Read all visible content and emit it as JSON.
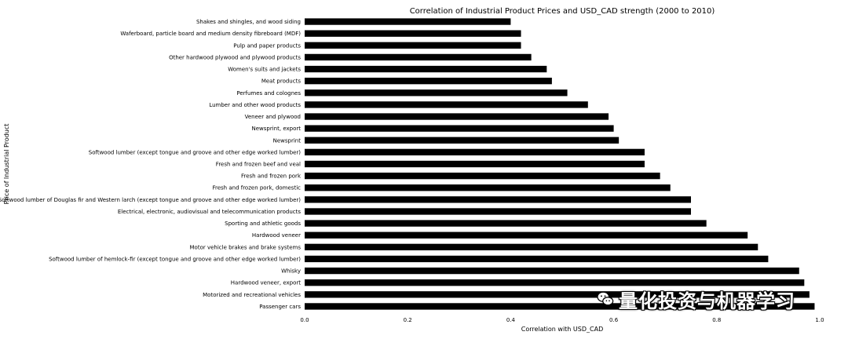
{
  "chart_data": {
    "type": "bar",
    "orientation": "horizontal",
    "title": "Correlation of Industrial Product Prices and USD_CAD strength (2000 to 2010)",
    "xlabel": "Correlation with USD_CAD",
    "ylabel": "Price of Industrial Product",
    "xlim": [
      0.0,
      1.0
    ],
    "xticks": [
      "0.0",
      "0.2",
      "0.4",
      "0.6",
      "0.8",
      "1.0"
    ],
    "grid": false,
    "categories": [
      "Shakes and shingles, and wood siding",
      "Waferboard, particle board and medium density fibreboard (MDF)",
      "Pulp and paper products",
      "Other hardwood plywood and plywood products",
      "Women's suits and jackets",
      "Meat products",
      "Perfumes and colognes",
      "Lumber and other wood products",
      "Veneer and plywood",
      "Newsprint, export",
      "Newsprint",
      "Softwood lumber (except tongue and groove and other edge worked lumber)",
      "Fresh and frozen beef and veal",
      "Fresh and frozen pork",
      "Fresh and frozen pork, domestic",
      "Softwood lumber of Douglas fir and Western larch (except tongue and groove and other edge worked lumber)",
      "Electrical, electronic, audiovisual and telecommunication products",
      "Sporting and athletic goods",
      "Hardwood veneer",
      "Motor vehicle brakes and brake systems",
      "Softwood lumber of hemlock-fir (except tongue and groove and other edge worked lumber)",
      "Whisky",
      "Hardwood veneer, export",
      "Motorized and recreational vehicles",
      "Passenger cars"
    ],
    "values": [
      0.4,
      0.42,
      0.42,
      0.44,
      0.47,
      0.48,
      0.51,
      0.55,
      0.59,
      0.6,
      0.61,
      0.66,
      0.66,
      0.69,
      0.71,
      0.75,
      0.75,
      0.78,
      0.86,
      0.88,
      0.9,
      0.96,
      0.97,
      0.98,
      0.99
    ]
  },
  "watermark": {
    "text": "量化投资与机器学习",
    "icon": "wechat-icon"
  }
}
